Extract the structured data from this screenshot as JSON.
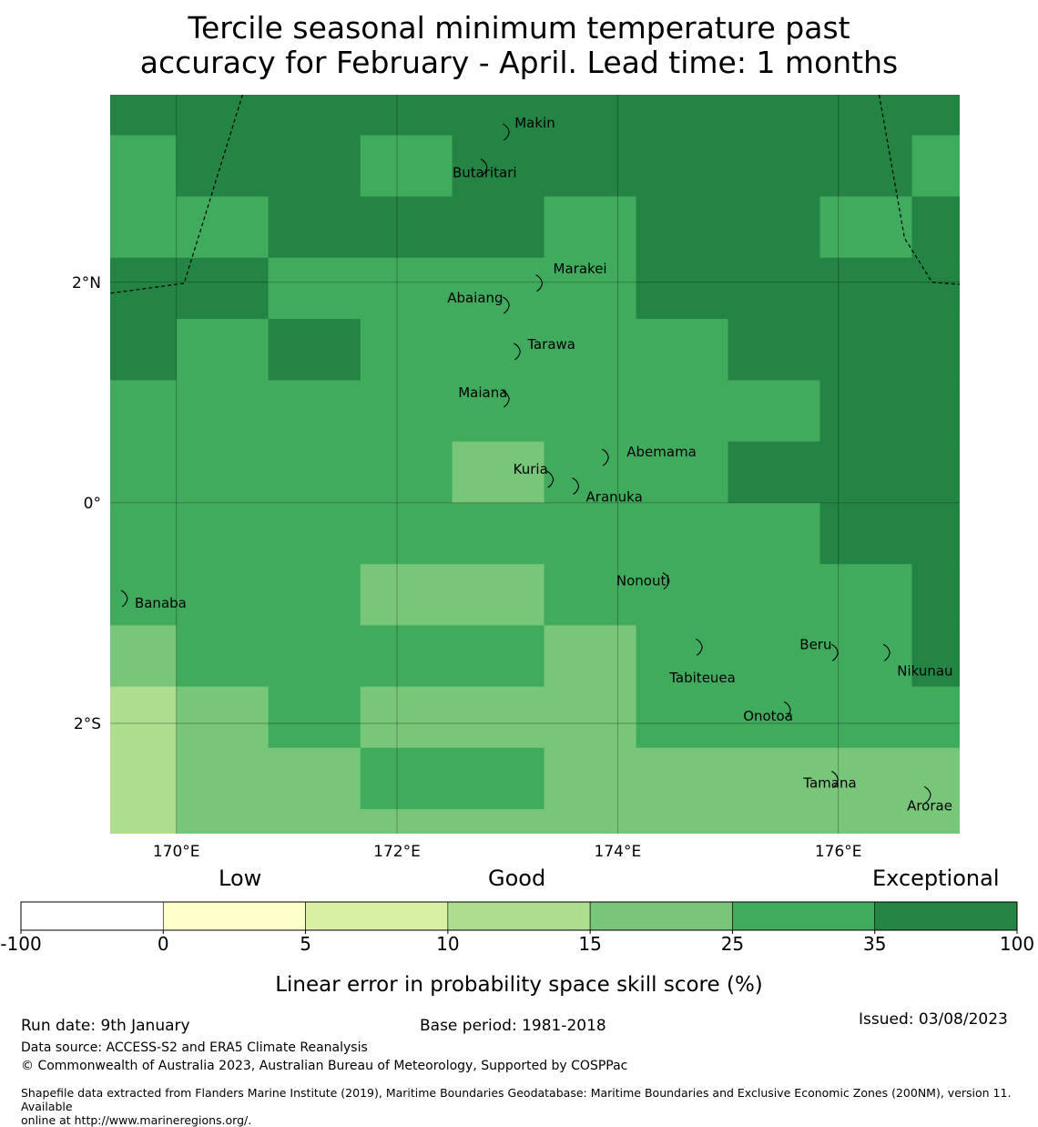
{
  "title": {
    "line1": "Tercile seasonal minimum temperature past",
    "line2": "accuracy for February - April. Lead time: 1 months"
  },
  "map": {
    "lon_range": [
      169.4,
      177.1
    ],
    "lat_range": [
      -3.0,
      3.7
    ],
    "cell_lon_edges": [
      169.4,
      170.0,
      170.833,
      171.667,
      172.5,
      173.333,
      174.167,
      175.0,
      175.833,
      176.667,
      177.1
    ],
    "cell_lat_edges": [
      3.7,
      3.333,
      2.778,
      2.222,
      1.667,
      1.111,
      0.556,
      0.0,
      -0.556,
      -1.111,
      -1.667,
      -2.222,
      -2.778,
      -3.0
    ],
    "cell_classes": [
      [
        6,
        6,
        6,
        6,
        6,
        6,
        6,
        6,
        6,
        6
      ],
      [
        5,
        6,
        6,
        5,
        6,
        6,
        6,
        6,
        6,
        5
      ],
      [
        5,
        5,
        6,
        6,
        6,
        5,
        6,
        6,
        5,
        6
      ],
      [
        6,
        6,
        5,
        5,
        5,
        5,
        6,
        6,
        6,
        6
      ],
      [
        6,
        5,
        6,
        5,
        5,
        5,
        5,
        6,
        6,
        6
      ],
      [
        5,
        5,
        5,
        5,
        5,
        5,
        5,
        5,
        6,
        6
      ],
      [
        5,
        5,
        5,
        5,
        4,
        5,
        5,
        6,
        6,
        6
      ],
      [
        5,
        5,
        5,
        5,
        5,
        5,
        5,
        5,
        6,
        6
      ],
      [
        5,
        5,
        5,
        4,
        4,
        5,
        5,
        5,
        5,
        6
      ],
      [
        4,
        5,
        5,
        5,
        5,
        4,
        5,
        5,
        5,
        6
      ],
      [
        3,
        4,
        5,
        4,
        4,
        4,
        5,
        5,
        5,
        5
      ],
      [
        3,
        4,
        4,
        5,
        5,
        4,
        4,
        4,
        4,
        4
      ],
      [
        3,
        4,
        4,
        4,
        4,
        4,
        4,
        4,
        4,
        4
      ]
    ],
    "x_ticks": [
      {
        "value": 170,
        "label": "170°E"
      },
      {
        "value": 172,
        "label": "172°E"
      },
      {
        "value": 174,
        "label": "174°E"
      },
      {
        "value": 176,
        "label": "176°E"
      }
    ],
    "y_ticks": [
      {
        "value": 2,
        "label": "2°N"
      },
      {
        "value": 0,
        "label": "0°"
      },
      {
        "value": -2,
        "label": "2°S"
      }
    ],
    "boundary_west": [
      [
        170.6,
        3.7
      ],
      [
        170.07,
        1.99
      ],
      [
        169.4,
        1.9
      ]
    ],
    "boundary_east": [
      [
        176.37,
        3.7
      ],
      [
        176.6,
        2.4
      ],
      [
        176.85,
        2.0
      ],
      [
        177.1,
        1.98
      ]
    ],
    "places": [
      {
        "name": "Makin",
        "lon": 173.0,
        "lat": 3.37,
        "label_dx": 8,
        "label_dy": -4
      },
      {
        "name": "Butaritari",
        "lon": 172.8,
        "lat": 3.05,
        "label_dx": -36,
        "label_dy": 12
      },
      {
        "name": "Marakei",
        "lon": 173.3,
        "lat": 2.0,
        "label_dx": 14,
        "label_dy": -10
      },
      {
        "name": "Abaiang",
        "lon": 173.0,
        "lat": 1.8,
        "label_dx": -66,
        "label_dy": -2
      },
      {
        "name": "Tarawa",
        "lon": 173.1,
        "lat": 1.38,
        "label_dx": 10,
        "label_dy": -2
      },
      {
        "name": "Maiana",
        "lon": 173.0,
        "lat": 0.95,
        "label_dx": -54,
        "label_dy": -1
      },
      {
        "name": "Abemama",
        "lon": 173.9,
        "lat": 0.42,
        "label_dx": 22,
        "label_dy": 0
      },
      {
        "name": "Kuria",
        "lon": 173.4,
        "lat": 0.22,
        "label_dx": -42,
        "label_dy": -5
      },
      {
        "name": "Aranuka",
        "lon": 173.63,
        "lat": 0.16,
        "label_dx": 10,
        "label_dy": 18
      },
      {
        "name": "Nonouti",
        "lon": 174.45,
        "lat": -0.7,
        "label_dx": -56,
        "label_dy": 6
      },
      {
        "name": "Banaba",
        "lon": 169.54,
        "lat": -0.86,
        "label_dx": 10,
        "label_dy": 11
      },
      {
        "name": "Beru",
        "lon": 175.98,
        "lat": -1.35,
        "label_dx": -40,
        "label_dy": -3
      },
      {
        "name": "Nikunau",
        "lon": 176.45,
        "lat": -1.35,
        "label_dx": 10,
        "label_dy": 26
      },
      {
        "name": "Tabiteuea",
        "lon": 174.75,
        "lat": -1.3,
        "label_dx": -34,
        "label_dy": 40
      },
      {
        "name": "Onotoa",
        "lon": 175.55,
        "lat": -1.87,
        "label_dx": -50,
        "label_dy": 13
      },
      {
        "name": "Tamana",
        "lon": 175.98,
        "lat": -2.5,
        "label_dx": -36,
        "label_dy": 10
      },
      {
        "name": "Arorae",
        "lon": 176.82,
        "lat": -2.64,
        "label_dx": -24,
        "label_dy": 18
      }
    ]
  },
  "legend": {
    "header_low": "Low",
    "header_good": "Good",
    "header_exceptional": "Exceptional",
    "bins": [
      {
        "from": -100,
        "to": 0,
        "color": "#ffffff"
      },
      {
        "from": 0,
        "to": 5,
        "color": "#ffffcc"
      },
      {
        "from": 5,
        "to": 10,
        "color": "#d9f0a3"
      },
      {
        "from": 10,
        "to": 15,
        "color": "#addd8e"
      },
      {
        "from": 15,
        "to": 25,
        "color": "#78c679"
      },
      {
        "from": 25,
        "to": 35,
        "color": "#41ab5d"
      },
      {
        "from": 35,
        "to": 100,
        "color": "#238443"
      }
    ],
    "tick_labels": [
      "-100",
      "0",
      "5",
      "10",
      "15",
      "25",
      "35",
      "100"
    ],
    "axis_label": "Linear error in probability space skill score (%)"
  },
  "footer": {
    "run_date": "Run date: 9th January",
    "base_period": "Base period: 1981-2018",
    "issued": "Issued: 03/08/2023",
    "data_source": "Data source: ACCESS-S2 and ERA5 Climate Reanalysis",
    "copyright": "© Commonwealth of Australia 2023, Australian Bureau of Meteorology, Supported by COSPPac",
    "shapefile_line1": "Shapefile data extracted from Flanders Marine Institute (2019), Maritime Boundaries Geodatabase: Maritime Boundaries and Exclusive Economic Zones (200NM), version 11. Available",
    "shapefile_line2": "online at http://www.marineregions.org/."
  }
}
